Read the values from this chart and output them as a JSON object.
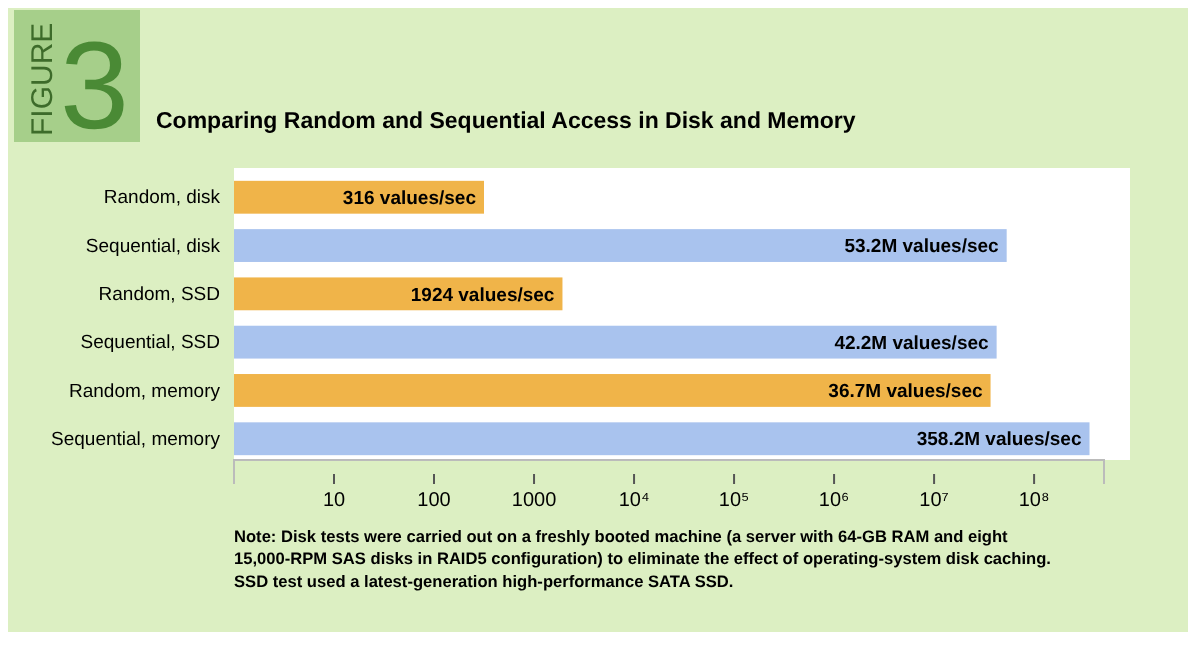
{
  "chart_data": {
    "type": "bar",
    "orientation": "horizontal",
    "log": "x",
    "title": "Comparing Random and Sequential Access in Disk and Memory",
    "categories": [
      "Random, disk",
      "Sequential, disk",
      "Random, SSD",
      "Sequential, SSD",
      "Random, memory",
      "Sequential, memory"
    ],
    "values": [
      316,
      53200000,
      1924,
      42200000,
      36700000,
      358200000
    ],
    "colors": [
      "#f0b449",
      "#a9c3ee",
      "#f0b449",
      "#a9c3ee",
      "#f0b449",
      "#a9c3ee"
    ],
    "value_labels": [
      "316 values/sec",
      "53.2M values/sec",
      "1924 values/sec",
      "42.2M values/sec",
      "36.7M values/sec",
      "358.2M values/sec"
    ],
    "xlim": [
      1,
      500000000
    ],
    "xticks": [
      10,
      100,
      1000,
      {
        "value": 10000,
        "label": "10⁴"
      },
      {
        "value": 100000,
        "label": "10⁵"
      },
      {
        "value": 1000000,
        "label": "10⁶"
      },
      {
        "value": 10000000,
        "label": "10⁷"
      },
      {
        "value": 100000000,
        "label": "10⁸"
      }
    ],
    "grid": false,
    "annotations": [
      "FIGURE",
      "3",
      "Note: Disk tests were carried out on a freshly booted machine (a server with 64-GB RAM and eight 15,000-RPM SAS disks in RAID5 configuration) to eliminate the effect of operating-system disk caching. SSD test used a latest-generation high-performance SATA SSD."
    ]
  }
}
